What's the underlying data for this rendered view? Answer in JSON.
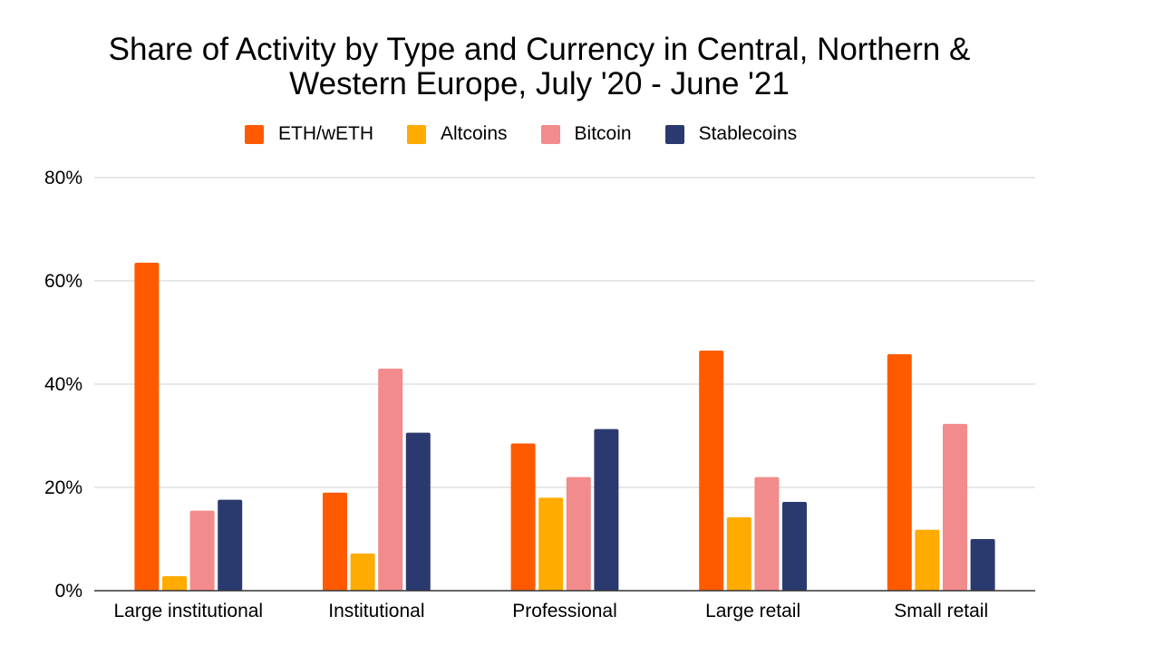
{
  "chart_data": {
    "type": "bar",
    "title": "Share of Activity by Type and Currency in Central, Northern & Western Europe, July '20 - June '21",
    "title_lines": [
      "Share of Activity by Type and Currency in Central, Northern &",
      "Western Europe, July '20 - June '21"
    ],
    "categories": [
      "Large institutional",
      "Institutional",
      "Professional",
      "Large retail",
      "Small retail"
    ],
    "series": [
      {
        "name": "ETH/wETH",
        "color": "#ff5a00",
        "values": [
          63.5,
          19,
          28.5,
          46.5,
          45.8
        ]
      },
      {
        "name": "Altcoins",
        "color": "#ffab00",
        "values": [
          2.8,
          7.2,
          18,
          14.2,
          11.8
        ]
      },
      {
        "name": "Bitcoin",
        "color": "#f28b8c",
        "values": [
          15.5,
          43,
          22,
          22,
          32.3
        ]
      },
      {
        "name": "Stablecoins",
        "color": "#2b3a6e",
        "values": [
          17.6,
          30.6,
          31.3,
          17.2,
          10
        ]
      }
    ],
    "ylim": [
      0,
      80
    ],
    "yticks": [
      "0%",
      "20%",
      "40%",
      "60%",
      "80%"
    ],
    "ytick_values": [
      0,
      20,
      40,
      60,
      80
    ],
    "xlabel": "",
    "ylabel": "",
    "legend_position": "top",
    "grid": true
  }
}
